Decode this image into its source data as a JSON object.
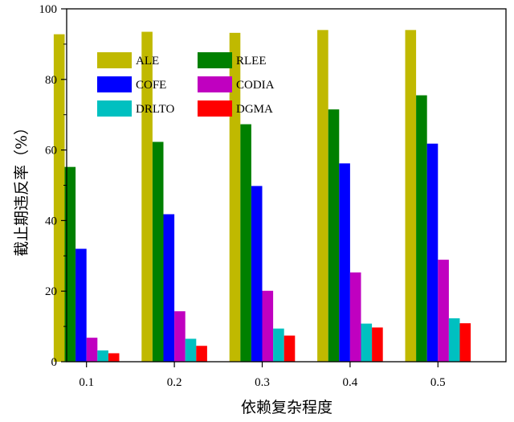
{
  "chart_data": {
    "type": "bar",
    "title": "",
    "xlabel": "依赖复杂程度",
    "ylabel": "截止期违反率（%）",
    "categories": [
      "0.1",
      "0.2",
      "0.3",
      "0.4",
      "0.5"
    ],
    "ylim": [
      0,
      100
    ],
    "yticks": [
      0,
      20,
      40,
      60,
      80,
      100
    ],
    "ytick_labels": [
      "0",
      "20",
      "40",
      "60",
      "80",
      "100"
    ],
    "grid": false,
    "legend_position": "top-left",
    "series": [
      {
        "name": "ALE",
        "color": "#c0b900",
        "values": [
          92.8,
          93.5,
          93.2,
          94.0,
          94.0
        ]
      },
      {
        "name": "RLEE",
        "color": "#008000",
        "values": [
          55.2,
          62.3,
          67.3,
          71.5,
          75.5
        ]
      },
      {
        "name": "COFE",
        "color": "#0000ff",
        "values": [
          32.0,
          41.8,
          49.8,
          56.2,
          61.8
        ]
      },
      {
        "name": "CODIA",
        "color": "#c000c0",
        "values": [
          6.8,
          14.3,
          20.1,
          25.3,
          28.9
        ]
      },
      {
        "name": "DRLTO",
        "color": "#00c0c0",
        "values": [
          3.2,
          6.5,
          9.4,
          10.8,
          12.3
        ]
      },
      {
        "name": "DGMA",
        "color": "#ff0000",
        "values": [
          2.4,
          4.5,
          7.4,
          9.7,
          10.9
        ]
      }
    ]
  }
}
